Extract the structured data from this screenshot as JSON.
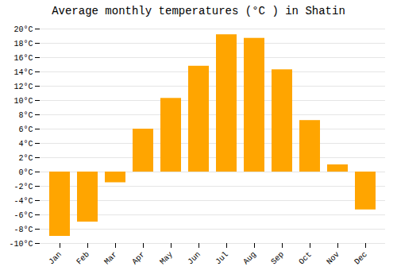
{
  "chart_data": {
    "type": "bar",
    "title": "Average monthly temperatures (°C ) in Shatin",
    "categories": [
      "Jan",
      "Feb",
      "Mar",
      "Apr",
      "May",
      "Jun",
      "Jul",
      "Aug",
      "Sep",
      "Oct",
      "Nov",
      "Dec"
    ],
    "values": [
      -9,
      -7,
      -1.5,
      6,
      10.3,
      14.8,
      19.2,
      18.7,
      14.3,
      7.2,
      1,
      -5.3
    ],
    "color": "#FFA500",
    "ylim": [
      -10,
      20
    ],
    "yticks": [
      {
        "value": -10,
        "label": "-10°C"
      },
      {
        "value": -8,
        "label": "-8°C"
      },
      {
        "value": -6,
        "label": "-6°C"
      },
      {
        "value": -4,
        "label": "-4°C"
      },
      {
        "value": -2,
        "label": "-2°C"
      },
      {
        "value": 0,
        "label": "0°C"
      },
      {
        "value": 2,
        "label": "2°C"
      },
      {
        "value": 4,
        "label": "4°C"
      },
      {
        "value": 6,
        "label": "6°C"
      },
      {
        "value": 8,
        "label": "8°C"
      },
      {
        "value": 10,
        "label": "10°C"
      },
      {
        "value": 12,
        "label": "12°C"
      },
      {
        "value": 14,
        "label": "14°C"
      },
      {
        "value": 16,
        "label": "16°C"
      },
      {
        "value": 18,
        "label": "18°C"
      },
      {
        "value": 20,
        "label": "20°C"
      }
    ],
    "grid": true
  }
}
